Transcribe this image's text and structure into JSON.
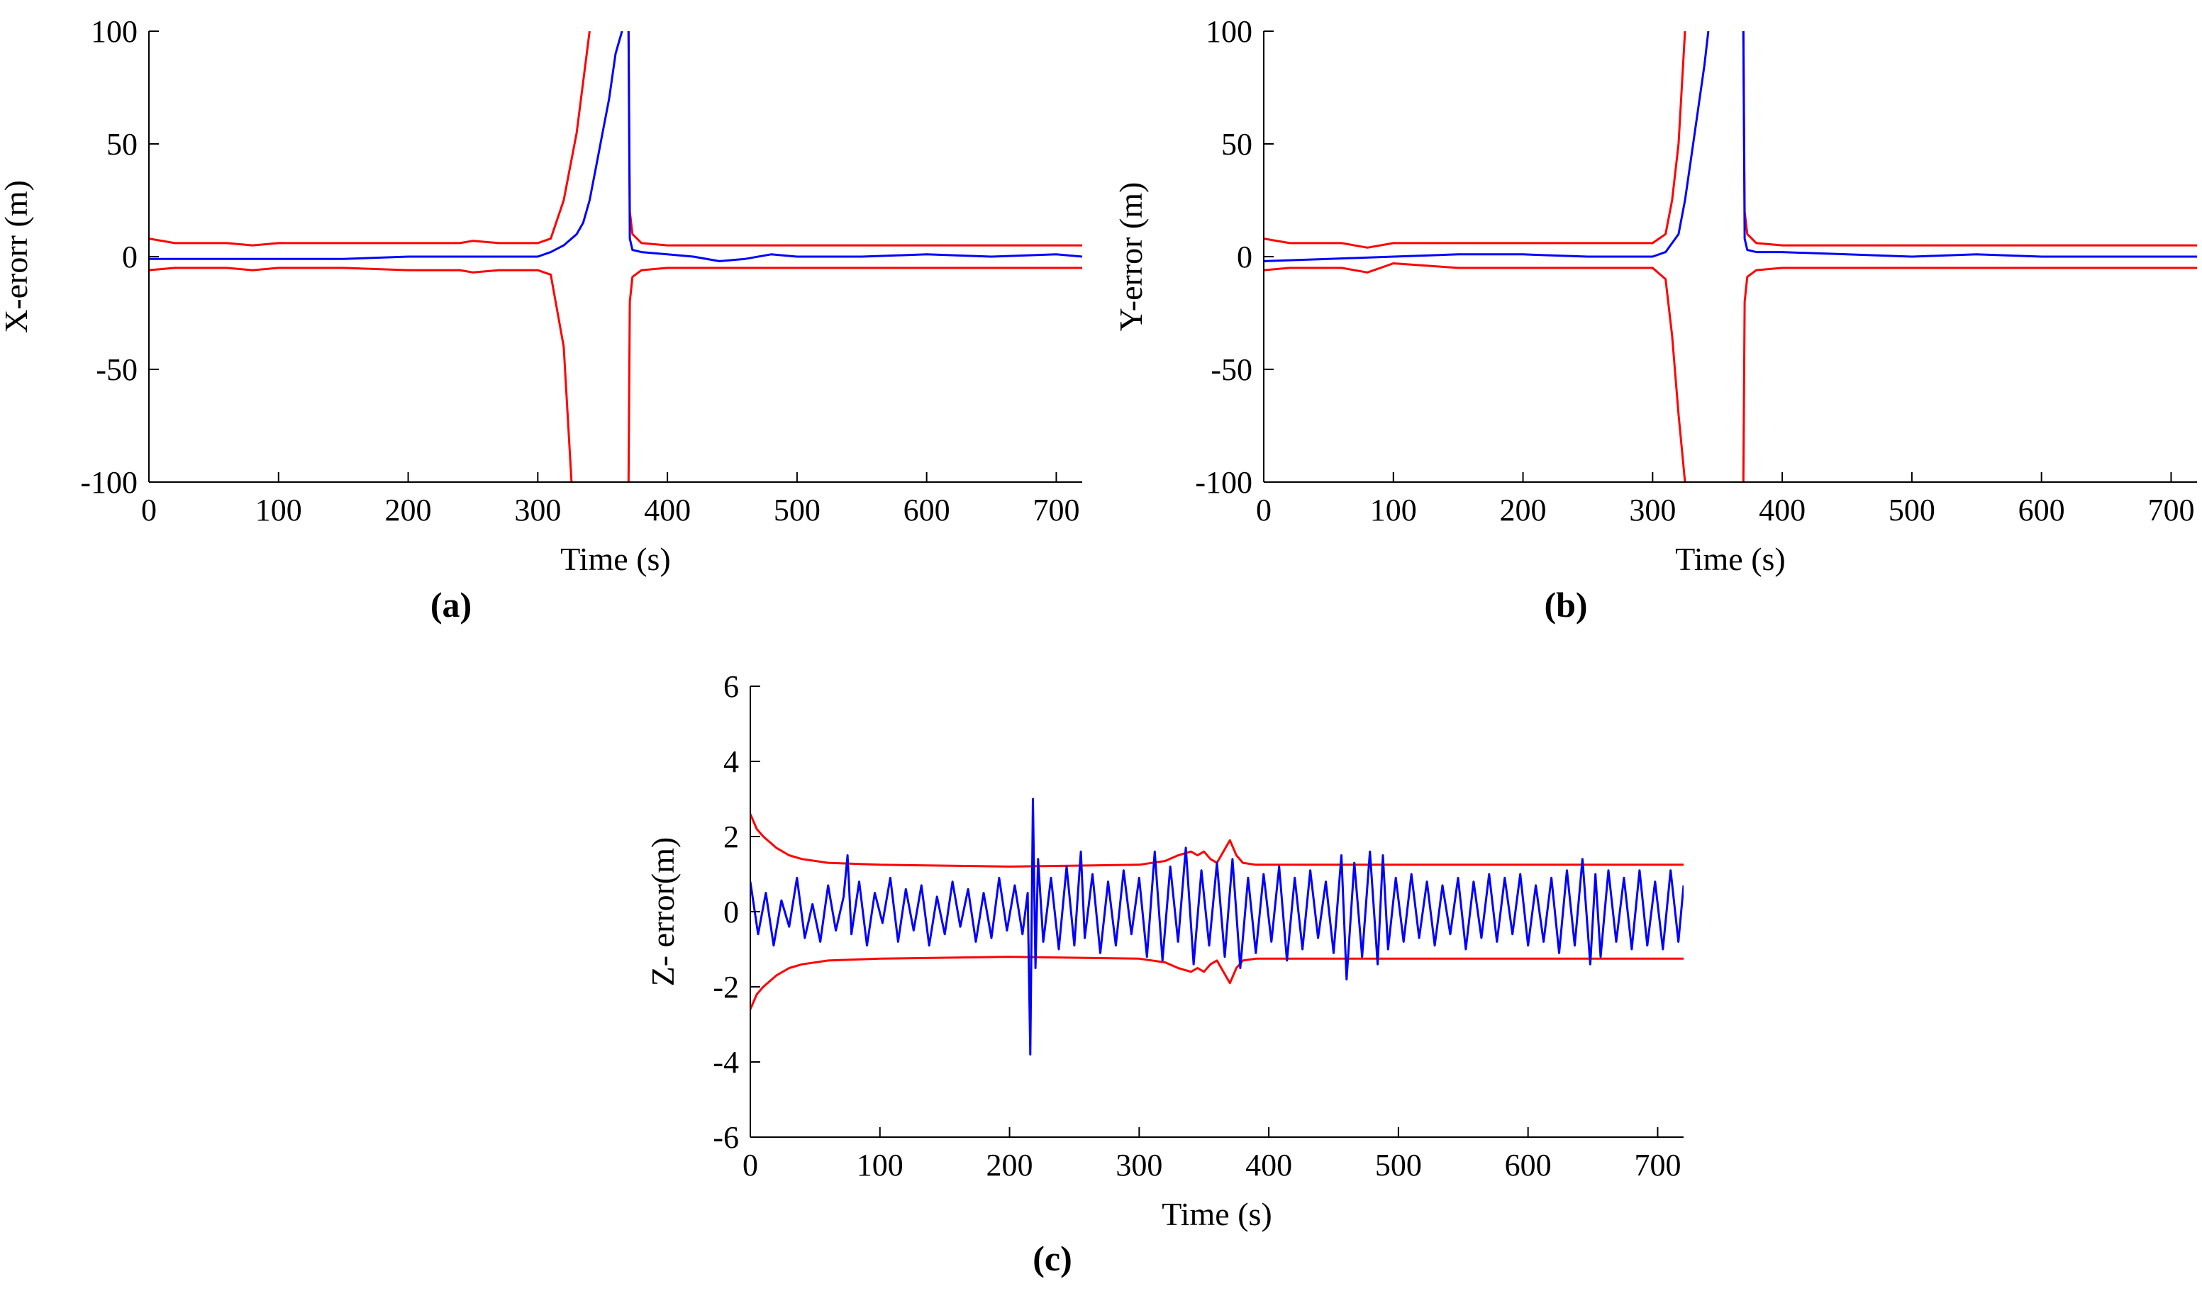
{
  "chart_data": [
    {
      "type": "line",
      "caption": "(a)",
      "xlabel": "Time (s)",
      "ylabel": "X-erorr (m)",
      "xlim": [
        0,
        720
      ],
      "ylim": [
        -100,
        100
      ],
      "xticks": [
        0,
        100,
        200,
        300,
        400,
        500,
        600,
        700
      ],
      "yticks": [
        -100,
        -50,
        0,
        50,
        100
      ],
      "grid": false,
      "series": [
        {
          "color": "#ff0000",
          "role": "upper-bound",
          "x": [
            0,
            20,
            60,
            80,
            100,
            150,
            200,
            240,
            250,
            270,
            300,
            310,
            320,
            330,
            340,
            350,
            358,
            362,
            367,
            368,
            369,
            370,
            371,
            373,
            380,
            400,
            450,
            500,
            550,
            600,
            650,
            720
          ],
          "y": [
            8,
            6,
            6,
            5,
            6,
            6,
            6,
            6,
            7,
            6,
            6,
            8,
            25,
            55,
            100,
            null,
            null,
            null,
            null,
            null,
            null,
            100,
            20,
            10,
            6,
            5,
            5,
            5,
            5,
            5,
            5,
            5
          ]
        },
        {
          "color": "#ff0000",
          "role": "lower-bound",
          "x": [
            0,
            20,
            60,
            80,
            100,
            150,
            200,
            240,
            250,
            270,
            300,
            310,
            320,
            326,
            330,
            350,
            358,
            362,
            367,
            368,
            369,
            370,
            371,
            373,
            380,
            400,
            450,
            500,
            550,
            600,
            650,
            720
          ],
          "y": [
            -6,
            -5,
            -5,
            -6,
            -5,
            -5,
            -6,
            -6,
            -7,
            -6,
            -6,
            -8,
            -40,
            -100,
            null,
            null,
            null,
            null,
            null,
            null,
            null,
            -100,
            -20,
            -9,
            -6,
            -5,
            -5,
            -5,
            -5,
            -5,
            -5,
            -5
          ]
        },
        {
          "color": "#0000ff",
          "role": "error",
          "x": [
            0,
            50,
            100,
            150,
            200,
            250,
            300,
            310,
            320,
            330,
            335,
            340,
            345,
            350,
            355,
            360,
            365,
            368,
            369,
            370,
            371,
            373,
            380,
            400,
            420,
            440,
            460,
            480,
            500,
            550,
            600,
            650,
            700,
            720
          ],
          "y": [
            -1,
            -1,
            -1,
            -1,
            0,
            0,
            0,
            2,
            5,
            10,
            15,
            25,
            40,
            55,
            70,
            90,
            100,
            null,
            null,
            100,
            8,
            3,
            2,
            1,
            0,
            -2,
            -1,
            1,
            0,
            0,
            1,
            0,
            1,
            0
          ]
        }
      ]
    },
    {
      "type": "line",
      "caption": "(b)",
      "xlabel": "Time (s)",
      "ylabel": "Y-error (m)",
      "xlim": [
        0,
        720
      ],
      "ylim": [
        -100,
        100
      ],
      "xticks": [
        0,
        100,
        200,
        300,
        400,
        500,
        600,
        700
      ],
      "yticks": [
        -100,
        -50,
        0,
        50,
        100
      ],
      "grid": false,
      "series": [
        {
          "color": "#ff0000",
          "role": "upper-bound",
          "x": [
            0,
            20,
            60,
            80,
            100,
            150,
            200,
            250,
            300,
            310,
            315,
            320,
            325,
            330,
            350,
            360,
            367,
            368,
            369,
            370,
            371,
            373,
            380,
            400,
            450,
            500,
            600,
            720
          ],
          "y": [
            8,
            6,
            6,
            4,
            6,
            6,
            6,
            6,
            6,
            10,
            25,
            50,
            100,
            null,
            null,
            null,
            null,
            null,
            null,
            100,
            20,
            10,
            6,
            5,
            5,
            5,
            5,
            5
          ]
        },
        {
          "color": "#ff0000",
          "role": "lower-bound",
          "x": [
            0,
            20,
            60,
            80,
            100,
            150,
            200,
            250,
            300,
            310,
            315,
            320,
            325,
            330,
            350,
            360,
            367,
            368,
            369,
            370,
            371,
            373,
            380,
            400,
            450,
            500,
            600,
            720
          ],
          "y": [
            -6,
            -5,
            -5,
            -7,
            -3,
            -5,
            -5,
            -5,
            -5,
            -10,
            -35,
            -70,
            -100,
            null,
            null,
            null,
            null,
            null,
            null,
            -100,
            -20,
            -9,
            -6,
            -5,
            -5,
            -5,
            -5,
            -5
          ]
        },
        {
          "color": "#0000ff",
          "role": "error",
          "x": [
            0,
            50,
            100,
            150,
            200,
            250,
            300,
            310,
            320,
            325,
            330,
            335,
            340,
            343,
            345,
            360,
            368,
            369,
            370,
            371,
            373,
            380,
            400,
            450,
            500,
            550,
            600,
            650,
            720
          ],
          "y": [
            -2,
            -1,
            0,
            1,
            1,
            0,
            0,
            2,
            10,
            25,
            45,
            65,
            85,
            100,
            null,
            null,
            null,
            null,
            100,
            8,
            3,
            2,
            2,
            1,
            0,
            1,
            0,
            0,
            0
          ]
        }
      ]
    },
    {
      "type": "line",
      "caption": "(c)",
      "xlabel": "Time (s)",
      "ylabel": "Z- error(m)",
      "xlim": [
        0,
        720
      ],
      "ylim": [
        -6,
        6
      ],
      "xticks": [
        0,
        100,
        200,
        300,
        400,
        500,
        600,
        700
      ],
      "yticks": [
        -6,
        -4,
        -2,
        0,
        2,
        4,
        6
      ],
      "grid": false,
      "series": [
        {
          "color": "#ff0000",
          "role": "upper-bound",
          "x": [
            0,
            5,
            10,
            20,
            30,
            40,
            60,
            100,
            200,
            300,
            320,
            330,
            340,
            345,
            350,
            355,
            360,
            365,
            370,
            375,
            380,
            390,
            400,
            500,
            600,
            720
          ],
          "y": [
            2.6,
            2.2,
            2.0,
            1.7,
            1.5,
            1.4,
            1.3,
            1.25,
            1.2,
            1.25,
            1.35,
            1.5,
            1.6,
            1.5,
            1.6,
            1.4,
            1.3,
            1.6,
            1.9,
            1.5,
            1.3,
            1.25,
            1.25,
            1.25,
            1.25,
            1.25
          ]
        },
        {
          "color": "#ff0000",
          "role": "lower-bound",
          "x": [
            0,
            5,
            10,
            20,
            30,
            40,
            60,
            100,
            200,
            300,
            320,
            330,
            340,
            345,
            350,
            355,
            360,
            365,
            370,
            375,
            380,
            390,
            400,
            500,
            600,
            720
          ],
          "y": [
            -2.6,
            -2.2,
            -2.0,
            -1.7,
            -1.5,
            -1.4,
            -1.3,
            -1.25,
            -1.2,
            -1.25,
            -1.35,
            -1.5,
            -1.6,
            -1.5,
            -1.6,
            -1.4,
            -1.3,
            -1.6,
            -1.9,
            -1.5,
            -1.3,
            -1.25,
            -1.25,
            -1.25,
            -1.25,
            -1.25
          ]
        },
        {
          "color": "#0000ff",
          "role": "error",
          "x": [
            0,
            6,
            12,
            18,
            24,
            30,
            36,
            42,
            48,
            54,
            60,
            66,
            72,
            75,
            78,
            84,
            90,
            96,
            102,
            108,
            114,
            120,
            126,
            132,
            138,
            144,
            150,
            156,
            162,
            168,
            174,
            180,
            186,
            192,
            198,
            204,
            210,
            214,
            216,
            218,
            220,
            222,
            226,
            232,
            238,
            244,
            250,
            255,
            258,
            264,
            270,
            276,
            282,
            288,
            294,
            300,
            306,
            312,
            318,
            324,
            330,
            336,
            342,
            348,
            354,
            360,
            366,
            372,
            378,
            384,
            390,
            396,
            402,
            408,
            414,
            420,
            426,
            432,
            438,
            444,
            450,
            456,
            460,
            466,
            472,
            478,
            484,
            488,
            492,
            498,
            504,
            510,
            516,
            522,
            528,
            534,
            540,
            546,
            552,
            558,
            564,
            570,
            576,
            582,
            588,
            594,
            600,
            606,
            612,
            618,
            624,
            630,
            636,
            642,
            648,
            652,
            656,
            662,
            668,
            674,
            680,
            686,
            692,
            698,
            704,
            710,
            716,
            720
          ],
          "y": [
            0.8,
            -0.6,
            0.5,
            -0.9,
            0.3,
            -0.4,
            0.9,
            -0.7,
            0.2,
            -0.8,
            0.7,
            -0.5,
            0.4,
            1.5,
            -0.6,
            0.8,
            -0.9,
            0.5,
            -0.3,
            0.9,
            -0.8,
            0.6,
            -0.5,
            0.7,
            -0.9,
            0.4,
            -0.6,
            0.8,
            -0.4,
            0.6,
            -0.8,
            0.5,
            -0.7,
            0.9,
            -0.5,
            0.7,
            -0.6,
            0.5,
            -3.8,
            3.0,
            -1.5,
            1.4,
            -0.8,
            0.9,
            -1.0,
            1.2,
            -0.9,
            1.6,
            -0.7,
            1.0,
            -1.1,
            0.8,
            -0.9,
            1.1,
            -0.6,
            0.9,
            -1.2,
            1.6,
            -1.3,
            1.2,
            -0.8,
            1.7,
            -1.4,
            1.1,
            -0.9,
            1.3,
            -1.2,
            1.4,
            -1.5,
            0.9,
            -1.1,
            1.0,
            -0.8,
            1.2,
            -1.3,
            0.9,
            -1.0,
            1.1,
            -0.7,
            0.8,
            -1.1,
            1.5,
            -1.8,
            1.3,
            -1.2,
            1.6,
            -1.4,
            1.5,
            -1.0,
            0.9,
            -0.8,
            1.0,
            -0.7,
            0.8,
            -0.9,
            0.7,
            -0.6,
            0.9,
            -1.0,
            0.8,
            -0.7,
            1.0,
            -0.8,
            0.9,
            -0.6,
            1.0,
            -0.9,
            0.7,
            -0.8,
            0.9,
            -1.1,
            1.1,
            -0.9,
            1.4,
            -1.4,
            1.0,
            -1.2,
            1.1,
            -0.8,
            0.9,
            -1.0,
            1.1,
            -0.9,
            0.8,
            -1.0,
            1.1,
            -0.8,
            0.7
          ]
        }
      ]
    }
  ]
}
